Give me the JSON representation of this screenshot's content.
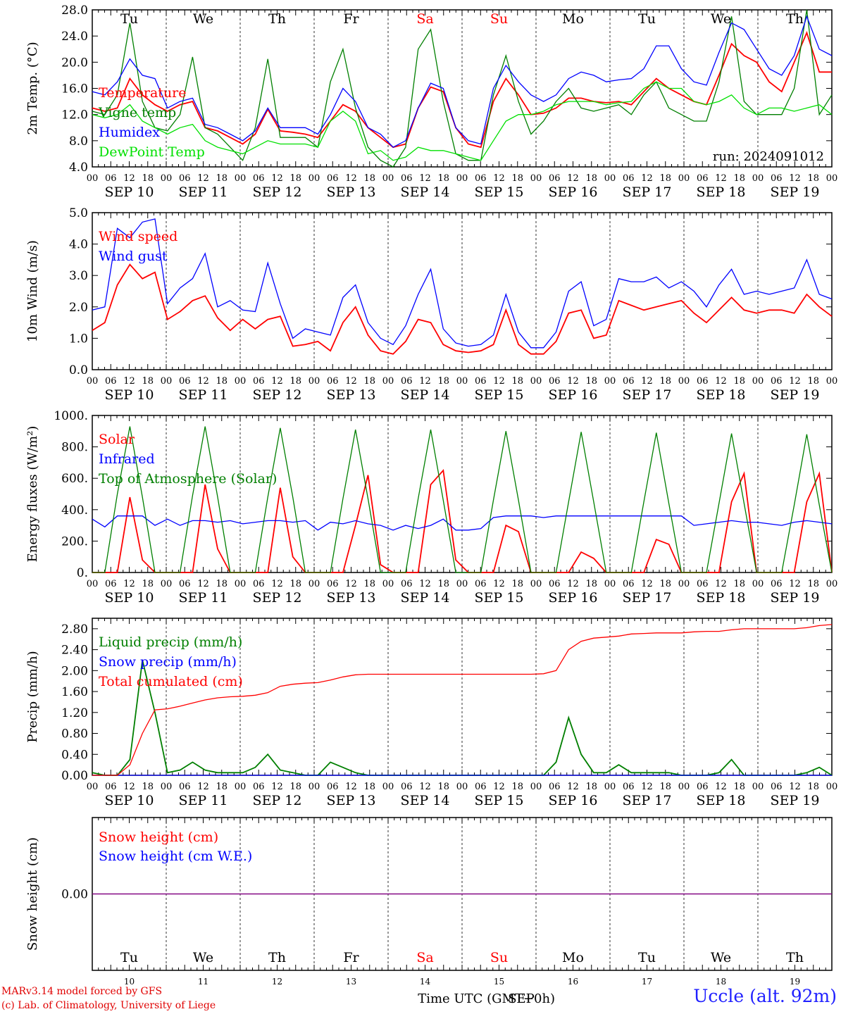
{
  "run_label": "run: 2024091012",
  "footer": {
    "model": "MARv3.14 model forced by GFS",
    "lab": "(c) Lab. of Climatology, University of Liege",
    "xaxis_title": "Time UTC (GMT+0h)",
    "month": "SEP",
    "station": "Uccle (alt. 92m)"
  },
  "colors": {
    "red": "#ff0000",
    "green": "#007f00",
    "blue": "#0000ff",
    "lightgreen": "#00e000",
    "purple": "#7f007f"
  },
  "days": [
    {
      "dow": "Tu",
      "date": "SEP 10",
      "num": "10",
      "weekend": false
    },
    {
      "dow": "We",
      "date": "SEP 11",
      "num": "11",
      "weekend": false
    },
    {
      "dow": "Th",
      "date": "SEP 12",
      "num": "12",
      "weekend": false
    },
    {
      "dow": "Fr",
      "date": "SEP 13",
      "num": "13",
      "weekend": false
    },
    {
      "dow": "Sa",
      "date": "SEP 14",
      "num": "14",
      "weekend": true
    },
    {
      "dow": "Su",
      "date": "SEP 15",
      "num": "15",
      "weekend": true
    },
    {
      "dow": "Mo",
      "date": "SEP 16",
      "num": "16",
      "weekend": false
    },
    {
      "dow": "Tu",
      "date": "SEP 17",
      "num": "17",
      "weekend": false
    },
    {
      "dow": "We",
      "date": "SEP 18",
      "num": "18",
      "weekend": false
    },
    {
      "dow": "Th",
      "date": "SEP 19",
      "num": "19",
      "weekend": false
    }
  ],
  "hour_labels": [
    "00",
    "06",
    "12",
    "18"
  ],
  "chart_data": [
    {
      "type": "line",
      "id": "temperature",
      "ylabel": "2m Temp. (°C)",
      "ylim": [
        4,
        28
      ],
      "yticks": [
        "4.0",
        "8.0",
        "12.0",
        "16.0",
        "20.0",
        "24.0",
        "28.0"
      ],
      "x_hours_step": 6,
      "series": [
        {
          "name": "Temperature",
          "color": "#ff0000",
          "values": [
            13,
            12.5,
            13,
            17.5,
            15,
            13.5,
            12.5,
            13.5,
            14,
            10,
            9.5,
            8.5,
            7.5,
            9,
            12.8,
            9.5,
            9.3,
            9,
            8.5,
            11,
            13.5,
            12.5,
            10,
            8.5,
            7,
            7.5,
            13,
            16.2,
            15.5,
            10,
            7.5,
            7,
            14,
            17.5,
            15,
            12,
            12.2,
            13,
            14.5,
            14.5,
            14,
            13.8,
            14,
            13.5,
            15.5,
            17.5,
            16,
            15,
            14,
            13.5,
            18,
            22.8,
            21,
            20,
            17,
            15.5,
            20,
            24.5,
            18.5,
            18.5
          ]
        },
        {
          "name": "Vigne temp",
          "color": "#007f00",
          "values": [
            12.5,
            12,
            15,
            26,
            14,
            10,
            9.5,
            12,
            20.8,
            10,
            9,
            7,
            5,
            10,
            20.5,
            8.5,
            8.5,
            8.5,
            7,
            17,
            22,
            13,
            7,
            5,
            4,
            7,
            22,
            25,
            14,
            6,
            5,
            5,
            15,
            21,
            14,
            9,
            11,
            14,
            16,
            13,
            12.5,
            13,
            13.5,
            12,
            15,
            17,
            13,
            12,
            11,
            11,
            17,
            27,
            14,
            12,
            12,
            12,
            16,
            28,
            12,
            15
          ]
        },
        {
          "name": "Humidex",
          "color": "#0000ff",
          "values": [
            15.5,
            15,
            17,
            20.5,
            18,
            17.5,
            13,
            14,
            14.5,
            10.5,
            10,
            9,
            8,
            9.5,
            13,
            10,
            10,
            10,
            9,
            12,
            16,
            14,
            10,
            9,
            7,
            8,
            13,
            16.8,
            16,
            10,
            8,
            7.5,
            16,
            19.5,
            17,
            15,
            14,
            15,
            17.5,
            18.5,
            18,
            17,
            17.3,
            17.5,
            19,
            22.5,
            22.5,
            19,
            17,
            16.5,
            21.5,
            26,
            25,
            22,
            19,
            18,
            21,
            27,
            22,
            21
          ]
        },
        {
          "name": "DewPoint Temp",
          "color": "#00e000",
          "values": [
            12,
            11.5,
            12,
            13.5,
            11,
            10,
            9,
            10,
            10.5,
            8,
            7,
            6.5,
            6,
            7,
            8,
            7.5,
            7.5,
            7.5,
            7,
            11,
            12.5,
            11,
            6,
            6.5,
            5,
            5.5,
            7,
            6.5,
            6.5,
            6,
            5.5,
            5,
            8,
            11,
            12,
            12,
            12.5,
            13.5,
            14,
            14,
            14,
            13.5,
            13.8,
            14,
            16,
            17,
            16,
            16,
            14,
            13.5,
            14,
            15,
            13,
            12,
            13,
            13,
            12.5,
            13,
            13.5,
            12
          ]
        }
      ]
    },
    {
      "type": "line",
      "id": "wind",
      "ylabel": "10m Wind (m/s)",
      "ylim": [
        0,
        5
      ],
      "yticks": [
        "0.0",
        "1.0",
        "2.0",
        "3.0",
        "4.0",
        "5.0"
      ],
      "x_hours_step": 6,
      "series": [
        {
          "name": "Wind speed",
          "color": "#ff0000",
          "values": [
            1.25,
            1.5,
            2.7,
            3.35,
            2.9,
            3.1,
            1.6,
            1.85,
            2.2,
            2.35,
            1.65,
            1.25,
            1.6,
            1.3,
            1.6,
            1.7,
            0.75,
            0.8,
            0.9,
            0.6,
            1.5,
            2.0,
            1.1,
            0.6,
            0.5,
            0.9,
            1.6,
            1.5,
            0.8,
            0.6,
            0.55,
            0.6,
            0.8,
            1.9,
            0.8,
            0.5,
            0.5,
            0.9,
            1.8,
            1.9,
            1.0,
            1.1,
            2.2,
            2.05,
            1.9,
            2.0,
            2.1,
            2.2,
            1.8,
            1.5,
            1.9,
            2.3,
            1.9,
            1.8,
            1.9,
            1.9,
            1.8,
            2.4,
            2.0,
            1.7
          ]
        },
        {
          "name": "Wind gust",
          "color": "#0000ff",
          "values": [
            1.9,
            2.0,
            4.5,
            4.2,
            4.7,
            4.8,
            2.1,
            2.6,
            2.9,
            3.7,
            2.0,
            2.2,
            1.9,
            1.85,
            3.4,
            2.1,
            1.0,
            1.3,
            1.2,
            1.1,
            2.3,
            2.7,
            1.5,
            1.0,
            0.8,
            1.4,
            2.4,
            3.2,
            1.3,
            0.85,
            0.75,
            0.8,
            1.1,
            2.4,
            1.2,
            0.7,
            0.7,
            1.2,
            2.5,
            2.8,
            1.4,
            1.6,
            2.9,
            2.8,
            2.8,
            2.95,
            2.6,
            2.8,
            2.5,
            2.0,
            2.7,
            3.2,
            2.4,
            2.5,
            2.4,
            2.5,
            2.6,
            3.5,
            2.4,
            2.25
          ]
        }
      ]
    },
    {
      "type": "line",
      "id": "energy",
      "ylabel": "Energy fluxes (W/m²)",
      "ylim": [
        0,
        1000
      ],
      "yticks": [
        "0.",
        "200.",
        "400.",
        "600.",
        "800.",
        "1000."
      ],
      "x_hours_step": 6,
      "series": [
        {
          "name": "Solar",
          "color": "#ff0000",
          "values": [
            0,
            0,
            0,
            480,
            80,
            0,
            0,
            0,
            0,
            560,
            150,
            0,
            0,
            0,
            0,
            540,
            100,
            0,
            0,
            0,
            0,
            300,
            620,
            50,
            0,
            0,
            0,
            560,
            650,
            80,
            0,
            0,
            0,
            300,
            260,
            0,
            0,
            0,
            0,
            130,
            90,
            0,
            0,
            0,
            0,
            210,
            180,
            0,
            0,
            0,
            0,
            450,
            630,
            0,
            0,
            0,
            0,
            450,
            630,
            0
          ]
        },
        {
          "name": "Infrared",
          "color": "#0000ff",
          "values": [
            340,
            290,
            360,
            360,
            360,
            300,
            340,
            300,
            330,
            330,
            320,
            330,
            310,
            320,
            330,
            330,
            320,
            330,
            270,
            320,
            310,
            330,
            310,
            300,
            270,
            300,
            280,
            300,
            340,
            270,
            270,
            280,
            350,
            360,
            360,
            360,
            350,
            360,
            360,
            360,
            360,
            360,
            360,
            360,
            360,
            360,
            360,
            360,
            300,
            310,
            320,
            330,
            320,
            320,
            310,
            300,
            320,
            330,
            320,
            310
          ]
        },
        {
          "name": "Top of Atmosphere (Solar)",
          "color": "#007f00",
          "values": [
            0,
            0,
            500,
            930,
            480,
            0,
            0,
            0,
            490,
            930,
            480,
            0,
            0,
            0,
            480,
            920,
            480,
            0,
            0,
            0,
            470,
            910,
            470,
            0,
            0,
            0,
            470,
            910,
            460,
            0,
            0,
            0,
            460,
            900,
            460,
            0,
            0,
            0,
            450,
            895,
            450,
            0,
            0,
            0,
            450,
            890,
            440,
            0,
            0,
            0,
            440,
            885,
            440,
            0,
            0,
            0,
            430,
            880,
            430,
            0
          ]
        }
      ]
    },
    {
      "type": "line",
      "id": "precip",
      "ylabel": "Precip (mm/h)",
      "ylim": [
        0,
        3.0
      ],
      "yticks": [
        "0.00",
        "0.40",
        "0.80",
        "1.20",
        "1.60",
        "2.00",
        "2.40",
        "2.80"
      ],
      "x_hours_step": 6,
      "series": [
        {
          "name": "Liquid precip (mm/h)",
          "color": "#007f00",
          "values": [
            0.05,
            0,
            0,
            0.3,
            2.2,
            1.2,
            0.05,
            0.1,
            0.25,
            0.1,
            0.05,
            0.05,
            0.05,
            0.15,
            0.4,
            0.1,
            0.05,
            0,
            0,
            0.25,
            0.15,
            0.05,
            0,
            0,
            0,
            0,
            0,
            0,
            0,
            0,
            0,
            0,
            0,
            0,
            0,
            0,
            0,
            0.25,
            1.1,
            0.4,
            0.05,
            0.05,
            0.2,
            0.05,
            0.05,
            0.05,
            0.05,
            0,
            0,
            0,
            0.05,
            0.3,
            0,
            0,
            0,
            0,
            0,
            0.05,
            0.15,
            0
          ]
        },
        {
          "name": "Snow precip (mm/h)",
          "color": "#0000ff",
          "values": [
            0,
            0,
            0,
            0,
            0,
            0,
            0,
            0,
            0,
            0,
            0,
            0,
            0,
            0,
            0,
            0,
            0,
            0,
            0,
            0,
            0,
            0,
            0,
            0,
            0,
            0,
            0,
            0,
            0,
            0,
            0,
            0,
            0,
            0,
            0,
            0,
            0,
            0,
            0,
            0,
            0,
            0,
            0,
            0,
            0,
            0,
            0,
            0,
            0,
            0,
            0,
            0,
            0,
            0,
            0,
            0,
            0,
            0,
            0,
            0
          ]
        },
        {
          "name": "Total cumulated (cm)",
          "color": "#ff0000",
          "values": [
            0,
            0,
            0,
            0.2,
            0.8,
            1.25,
            1.27,
            1.32,
            1.38,
            1.44,
            1.48,
            1.5,
            1.51,
            1.53,
            1.58,
            1.7,
            1.74,
            1.76,
            1.77,
            1.82,
            1.88,
            1.92,
            1.93,
            1.93,
            1.93,
            1.93,
            1.93,
            1.93,
            1.93,
            1.93,
            1.93,
            1.93,
            1.93,
            1.93,
            1.93,
            1.93,
            1.94,
            2.0,
            2.4,
            2.56,
            2.62,
            2.64,
            2.66,
            2.7,
            2.71,
            2.72,
            2.72,
            2.72,
            2.74,
            2.75,
            2.75,
            2.78,
            2.8,
            2.8,
            2.8,
            2.8,
            2.8,
            2.82,
            2.86,
            2.88
          ]
        }
      ]
    },
    {
      "type": "line",
      "id": "snow",
      "ylabel": "Snow height (cm)",
      "ylim": [
        -1,
        1
      ],
      "yticks": [
        "0.00"
      ],
      "x_hours_step": 6,
      "series": [
        {
          "name": "Snow height (cm)",
          "color": "#ff0000",
          "values": [
            0,
            0,
            0,
            0,
            0,
            0,
            0,
            0,
            0,
            0,
            0,
            0,
            0,
            0,
            0,
            0,
            0,
            0,
            0,
            0,
            0,
            0,
            0,
            0,
            0,
            0,
            0,
            0,
            0,
            0,
            0,
            0,
            0,
            0,
            0,
            0,
            0,
            0,
            0,
            0,
            0,
            0,
            0,
            0,
            0,
            0,
            0,
            0,
            0,
            0,
            0,
            0,
            0,
            0,
            0,
            0,
            0,
            0,
            0,
            0
          ]
        },
        {
          "name": "Snow height (cm W.E.)",
          "color": "#0000ff",
          "values": [
            0,
            0,
            0,
            0,
            0,
            0,
            0,
            0,
            0,
            0,
            0,
            0,
            0,
            0,
            0,
            0,
            0,
            0,
            0,
            0,
            0,
            0,
            0,
            0,
            0,
            0,
            0,
            0,
            0,
            0,
            0,
            0,
            0,
            0,
            0,
            0,
            0,
            0,
            0,
            0,
            0,
            0,
            0,
            0,
            0,
            0,
            0,
            0,
            0,
            0,
            0,
            0,
            0,
            0,
            0,
            0,
            0,
            0,
            0,
            0
          ]
        }
      ]
    }
  ]
}
